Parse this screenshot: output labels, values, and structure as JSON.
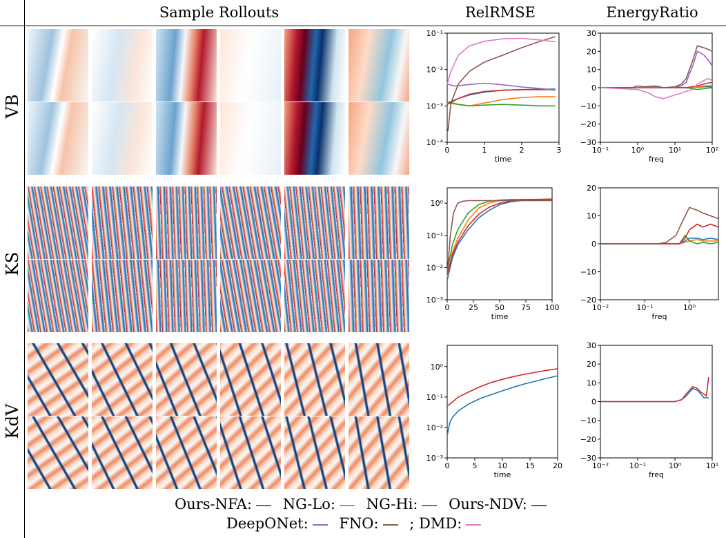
{
  "headers": {
    "rollouts": "Sample Rollouts",
    "relrmse": "RelRMSE",
    "energy": "EnergyRatio"
  },
  "rows": [
    {
      "id": "vb",
      "label": "VB"
    },
    {
      "id": "ks",
      "label": "KS"
    },
    {
      "id": "kdv",
      "label": "KdV"
    }
  ],
  "legend": {
    "line1": [
      {
        "label": "Ours-NFA:",
        "color": "#1f77b4"
      },
      {
        "label": "NG-Lo:",
        "color": "#ff7f0e"
      },
      {
        "label": "NG-Hi:",
        "color": "#2ca02c"
      },
      {
        "label": "Ours-NDV:",
        "color": "#d62728"
      }
    ],
    "line2": [
      {
        "label": "DeepONet:",
        "color": "#9467bd"
      },
      {
        "label": "FNO:",
        "color": "#8c564b"
      },
      {
        "label": "; DMD:",
        "color": "#e377c2"
      }
    ]
  },
  "colors": {
    "Ours-NFA": "#1f77b4",
    "NG-Lo": "#ff7f0e",
    "NG-Hi": "#2ca02c",
    "Ours-NDV": "#d62728",
    "DeepONet": "#9467bd",
    "FNO": "#8c564b",
    "DMD": "#e377c2",
    "heat_red": "#b2182b",
    "heat_blue": "#2166ac"
  },
  "chart_data": [
    {
      "id": "vb-relrmse",
      "type": "line",
      "xlabel": "time",
      "ylabel": "",
      "yscale": "log",
      "xlim": [
        0,
        3
      ],
      "ylim": [
        0.0001,
        0.1
      ],
      "xticks": [
        0,
        1,
        2,
        3
      ],
      "ytick_labels": [
        "10⁻⁴",
        "10⁻³",
        "10⁻²",
        "10⁻¹"
      ],
      "ytick_values": [
        0.0001,
        0.001,
        0.01,
        0.1
      ],
      "series": [
        {
          "key": "Ours-NFA",
          "x": [
            0,
            0.3,
            0.6,
            1,
            1.5,
            2,
            2.5,
            2.9
          ],
          "y": [
            0.0012,
            0.0016,
            0.002,
            0.0024,
            0.0027,
            0.0028,
            0.0029,
            0.0029
          ]
        },
        {
          "key": "NG-Lo",
          "x": [
            0,
            0.3,
            0.6,
            1,
            1.5,
            2,
            2.5,
            2.9
          ],
          "y": [
            0.0012,
            0.0011,
            0.001,
            0.0012,
            0.0015,
            0.0017,
            0.0018,
            0.0018
          ]
        },
        {
          "key": "NG-Hi",
          "x": [
            0,
            0.3,
            0.6,
            1,
            1.5,
            2,
            2.5,
            2.9
          ],
          "y": [
            0.0013,
            0.0011,
            0.001,
            0.00105,
            0.0011,
            0.00105,
            0.001,
            0.001
          ]
        },
        {
          "key": "Ours-NDV",
          "x": [
            0,
            0.3,
            0.6,
            1,
            1.5,
            2,
            2.5,
            2.9
          ],
          "y": [
            0.0011,
            0.0016,
            0.0021,
            0.0025,
            0.0027,
            0.0028,
            0.0028,
            0.0028
          ]
        },
        {
          "key": "DeepONet",
          "x": [
            0,
            0.2,
            0.5,
            1,
            1.5,
            2,
            2.5,
            2.9
          ],
          "y": [
            0.004,
            0.0035,
            0.0038,
            0.0042,
            0.0038,
            0.0033,
            0.003,
            0.0027
          ]
        },
        {
          "key": "FNO",
          "x": [
            0.02,
            0.1,
            0.3,
            0.6,
            1,
            1.5,
            2,
            2.5,
            2.9
          ],
          "y": [
            0.0002,
            0.0012,
            0.004,
            0.009,
            0.016,
            0.025,
            0.04,
            0.06,
            0.08
          ]
        },
        {
          "key": "DMD",
          "x": [
            0,
            0.1,
            0.3,
            0.6,
            1,
            1.5,
            2,
            2.5,
            2.9
          ],
          "y": [
            0.004,
            0.009,
            0.025,
            0.045,
            0.06,
            0.07,
            0.072,
            0.065,
            0.058
          ]
        }
      ]
    },
    {
      "id": "vb-energy",
      "type": "line",
      "xlabel": "freq",
      "ylabel": "",
      "xscale": "log",
      "xlim": [
        0.1,
        100
      ],
      "ylim": [
        -30,
        30
      ],
      "yticks": [
        -30,
        -20,
        -10,
        0,
        10,
        20,
        30
      ],
      "xtick_labels": [
        "10⁻¹",
        "10⁰",
        "10¹",
        "10²"
      ],
      "xtick_values": [
        0.1,
        1,
        10,
        100
      ],
      "series": [
        {
          "key": "Ours-NFA",
          "x": [
            0.1,
            1,
            5,
            10,
            20,
            40,
            60,
            100
          ],
          "y": [
            0,
            0,
            0,
            0,
            0,
            0.3,
            0.5,
            0.5
          ]
        },
        {
          "key": "NG-Lo",
          "x": [
            0.1,
            1,
            5,
            10,
            20,
            40,
            60,
            100
          ],
          "y": [
            0,
            0,
            0,
            0,
            0,
            0.5,
            1,
            1.2
          ]
        },
        {
          "key": "NG-Hi",
          "x": [
            0.1,
            1,
            5,
            10,
            20,
            40,
            60,
            100
          ],
          "y": [
            0,
            0,
            0,
            0,
            0,
            -1,
            -0.5,
            0
          ]
        },
        {
          "key": "Ours-NDV",
          "x": [
            0.1,
            1,
            5,
            10,
            20,
            40,
            60,
            100
          ],
          "y": [
            0,
            0,
            0,
            0,
            0,
            1,
            2,
            3
          ]
        },
        {
          "key": "DeepONet",
          "x": [
            0.1,
            1,
            3,
            5,
            10,
            15,
            20,
            30,
            40,
            60,
            80,
            100
          ],
          "y": [
            0,
            0,
            0.3,
            0,
            0.3,
            1,
            3,
            12,
            20,
            18,
            15,
            12
          ]
        },
        {
          "key": "FNO",
          "x": [
            0.1,
            0.7,
            1,
            1.5,
            3,
            5,
            10,
            15,
            20,
            30,
            40,
            60,
            80,
            100
          ],
          "y": [
            0,
            0,
            1,
            0.5,
            1,
            0,
            0.5,
            2,
            5,
            15,
            23,
            22,
            21,
            20
          ]
        },
        {
          "key": "DMD",
          "x": [
            0.1,
            1,
            2,
            3,
            5,
            7,
            10,
            15,
            20,
            30,
            40,
            60,
            80,
            100
          ],
          "y": [
            0,
            -1,
            -3,
            -5,
            -6,
            -5,
            -4,
            -3,
            -2,
            -1,
            2,
            4,
            5,
            4
          ]
        }
      ]
    },
    {
      "id": "ks-relrmse",
      "type": "line",
      "xlabel": "time",
      "ylabel": "",
      "yscale": "log",
      "xlim": [
        0,
        100
      ],
      "ylim": [
        0.001,
        3
      ],
      "xticks": [
        0,
        25,
        50,
        75,
        100
      ],
      "ytick_labels": [
        "10⁻³",
        "10⁻²",
        "10⁻¹",
        "10⁰"
      ],
      "ytick_values": [
        0.001,
        0.01,
        0.1,
        1
      ],
      "series": [
        {
          "key": "Ours-NFA",
          "x": [
            0,
            5,
            10,
            20,
            30,
            40,
            50,
            60,
            70,
            80,
            100
          ],
          "y": [
            0.004,
            0.02,
            0.05,
            0.15,
            0.35,
            0.6,
            0.9,
            1.1,
            1.2,
            1.25,
            1.3
          ]
        },
        {
          "key": "NG-Lo",
          "x": [
            0,
            5,
            10,
            20,
            30,
            40,
            50,
            60,
            80,
            100
          ],
          "y": [
            0.005,
            0.03,
            0.08,
            0.3,
            0.7,
            1,
            1.2,
            1.3,
            1.3,
            1.3
          ]
        },
        {
          "key": "NG-Hi",
          "x": [
            0,
            5,
            10,
            20,
            30,
            40,
            50,
            60,
            80,
            100
          ],
          "y": [
            0.008,
            0.05,
            0.15,
            0.5,
            0.9,
            1.15,
            1.25,
            1.3,
            1.3,
            1.3
          ]
        },
        {
          "key": "Ours-NDV",
          "x": [
            0,
            5,
            10,
            20,
            30,
            40,
            50,
            60,
            70,
            80,
            100
          ],
          "y": [
            0.006,
            0.025,
            0.06,
            0.2,
            0.45,
            0.75,
            1,
            1.15,
            1.25,
            1.3,
            1.35
          ]
        },
        {
          "key": "FNO",
          "x": [
            0,
            3,
            6,
            10,
            15,
            20,
            40,
            60,
            80,
            100
          ],
          "y": [
            0.006,
            0.1,
            0.5,
            1,
            1.15,
            1.2,
            1.2,
            1.2,
            1.2,
            1.2
          ]
        }
      ]
    },
    {
      "id": "ks-energy",
      "type": "line",
      "xlabel": "freq",
      "ylabel": "",
      "xscale": "log",
      "xlim": [
        0.01,
        4.5
      ],
      "ylim": [
        -20,
        20
      ],
      "yticks": [
        -20,
        -10,
        0,
        10,
        20
      ],
      "xtick_labels": [
        "10⁻²",
        "10⁻¹",
        "10⁰"
      ],
      "xtick_values": [
        0.01,
        0.1,
        1
      ],
      "series": [
        {
          "key": "Ours-NFA",
          "x": [
            0.01,
            0.3,
            0.6,
            0.8,
            1,
            1.5,
            2,
            3,
            4.5
          ],
          "y": [
            0,
            0,
            0,
            1,
            2,
            2,
            1.5,
            2,
            1.5
          ]
        },
        {
          "key": "NG-Lo",
          "x": [
            0.01,
            0.3,
            0.6,
            0.8,
            1,
            1.5,
            2,
            3,
            4.5
          ],
          "y": [
            0,
            0,
            0,
            0.5,
            1,
            1.5,
            1,
            1,
            1
          ]
        },
        {
          "key": "NG-Hi",
          "x": [
            0.01,
            0.3,
            0.6,
            0.8,
            1,
            1.5,
            2,
            3,
            4.5
          ],
          "y": [
            0,
            0,
            0,
            3,
            1,
            0,
            0.5,
            0,
            0.5
          ]
        },
        {
          "key": "Ours-NDV",
          "x": [
            0.01,
            0.3,
            0.6,
            0.8,
            1,
            1.5,
            2,
            3,
            4.5
          ],
          "y": [
            0,
            0,
            0,
            2,
            5,
            7,
            6,
            7,
            6
          ]
        },
        {
          "key": "FNO",
          "x": [
            0.01,
            0.2,
            0.3,
            0.5,
            0.7,
            1,
            1.5,
            2,
            3,
            4.5
          ],
          "y": [
            0,
            0,
            0.5,
            3,
            8,
            13,
            12,
            11,
            10,
            9
          ]
        }
      ]
    },
    {
      "id": "kdv-relrmse",
      "type": "line",
      "xlabel": "time",
      "ylabel": "",
      "yscale": "log",
      "xlim": [
        0,
        20
      ],
      "ylim": [
        0.001,
        5
      ],
      "xticks": [
        0,
        5,
        10,
        15,
        20
      ],
      "ytick_labels": [
        "10⁻³",
        "10⁻²",
        "10⁻¹",
        "10⁰"
      ],
      "ytick_values": [
        0.001,
        0.01,
        0.1,
        1
      ],
      "series": [
        {
          "key": "Ours-NFA",
          "x": [
            0.05,
            0.5,
            1,
            2,
            4,
            6,
            8,
            10,
            12,
            14,
            16,
            18,
            20
          ],
          "y": [
            0.006,
            0.015,
            0.022,
            0.035,
            0.06,
            0.09,
            0.12,
            0.16,
            0.21,
            0.27,
            0.33,
            0.41,
            0.5
          ]
        },
        {
          "key": "Ours-NDV",
          "x": [
            0,
            1,
            2,
            4,
            6,
            8,
            10,
            12,
            14,
            16,
            18,
            20
          ],
          "y": [
            0.05,
            0.07,
            0.1,
            0.15,
            0.22,
            0.3,
            0.38,
            0.47,
            0.56,
            0.65,
            0.75,
            0.85
          ]
        }
      ]
    },
    {
      "id": "kdv-energy",
      "type": "line",
      "xlabel": "freq",
      "ylabel": "",
      "xscale": "log",
      "xlim": [
        0.01,
        10
      ],
      "ylim": [
        -30,
        30
      ],
      "yticks": [
        -30,
        -20,
        -10,
        0,
        10,
        20,
        30
      ],
      "xtick_labels": [
        "10⁻²",
        "10⁻¹",
        "10⁰",
        "10¹"
      ],
      "xtick_values": [
        0.01,
        0.1,
        1,
        10
      ],
      "series": [
        {
          "key": "Ours-NFA",
          "x": [
            0.01,
            0.5,
            1,
            1.5,
            2,
            3,
            4,
            5,
            6,
            8
          ],
          "y": [
            0,
            0,
            0,
            1,
            3,
            7,
            6,
            4,
            2,
            2
          ]
        },
        {
          "key": "Ours-NDV",
          "x": [
            0.01,
            0.5,
            1,
            1.5,
            2,
            3,
            4,
            5,
            6,
            7,
            8
          ],
          "y": [
            0,
            0,
            0,
            1,
            4,
            8,
            7,
            5,
            4,
            3,
            13
          ]
        }
      ]
    }
  ]
}
